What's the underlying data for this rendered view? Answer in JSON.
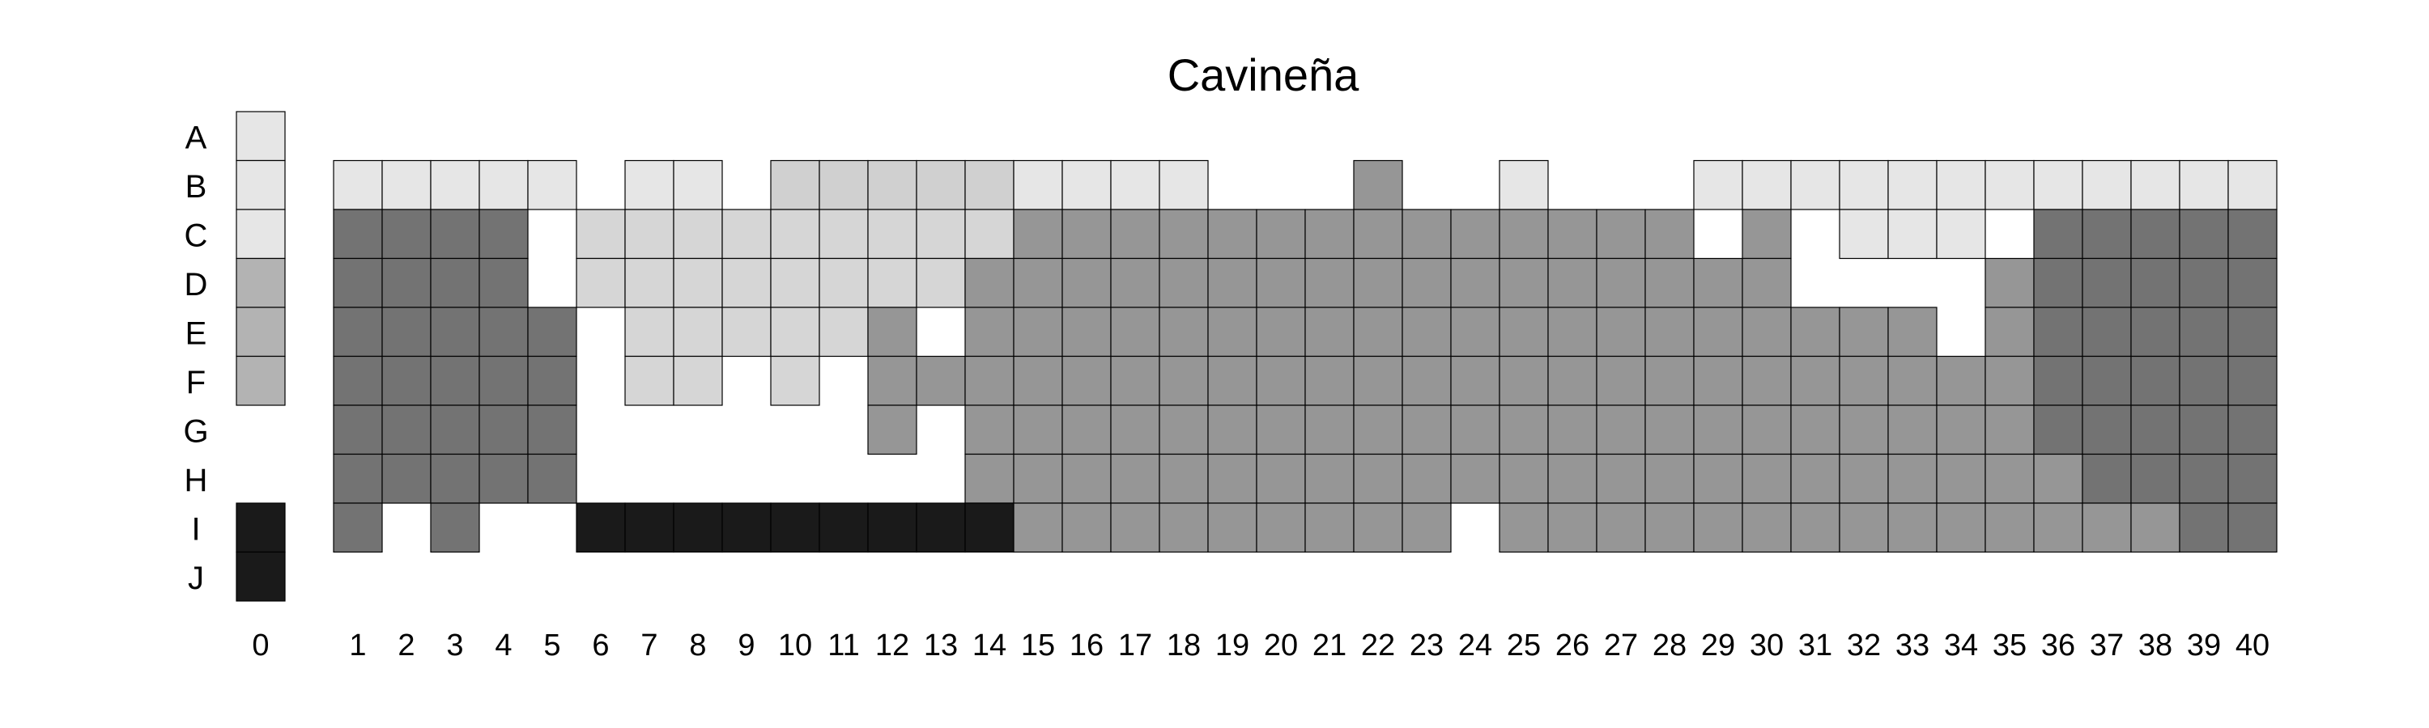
{
  "chart_data": {
    "type": "heatmap",
    "title": "Cavineña",
    "xlabel": "",
    "ylabel": "",
    "x_categories": [
      "0",
      "1",
      "2",
      "3",
      "4",
      "5",
      "6",
      "7",
      "8",
      "9",
      "10",
      "11",
      "12",
      "13",
      "14",
      "15",
      "16",
      "17",
      "18",
      "19",
      "20",
      "21",
      "22",
      "23",
      "24",
      "25",
      "26",
      "27",
      "28",
      "29",
      "30",
      "31",
      "32",
      "33",
      "34",
      "35",
      "36",
      "37",
      "38",
      "39",
      "40"
    ],
    "y_categories": [
      "A",
      "B",
      "C",
      "D",
      "E",
      "F",
      "G",
      "H",
      "I",
      "J"
    ],
    "legend_column": {
      "x": "0",
      "cells": [
        {
          "row": "A",
          "shade": "#e6e6e6"
        },
        {
          "row": "B",
          "shade": "#e6e6e6"
        },
        {
          "row": "C",
          "shade": "#e6e6e6"
        },
        {
          "row": "D",
          "shade": "#b3b3b3"
        },
        {
          "row": "E",
          "shade": "#b3b3b3"
        },
        {
          "row": "F",
          "shade": "#b3b3b3"
        },
        {
          "row": "I",
          "shade": "#1a1a1a"
        },
        {
          "row": "J",
          "shade": "#1a1a1a"
        }
      ]
    },
    "palette": {
      "L": "#e6e6e6",
      "C": "#d0d0d0",
      "P": "#d6d6d6",
      "G": "#969696",
      "D": "#737373",
      "K": "#1a1a1a",
      ".": null
    },
    "rows_B_to_I": [
      "LLLLL.LL.CCCCCLLLL...G..L...LLLLLLLLLLLL",
      "DDDD.PPPPPPPPPGGGGGGGGGGGGGG.G.LLL.DDDDD",
      "DDDD.PPPPPPPPGGGGGGGGGGGGGGGGG....GDDDDD",
      "DDDDD.PPPPPG.GGGGGGGGGGGGGGGGGGGG.GDDDDD",
      "DDDDD.PP.P.GGGGGGGGGGGGGGGGGGGGGGGGDDDDD",
      "DDDDD......G.GGGGGGGGGGGGGGGGGGGGGGDDDDD",
      "DDDDD........GGGGGGGGGGGGGGGGGGGGGGGDDDD",
      "D.D..KKKKKKKKKGGGGGGGGG.GGGGGGGGGGGGGGDD"
    ]
  }
}
